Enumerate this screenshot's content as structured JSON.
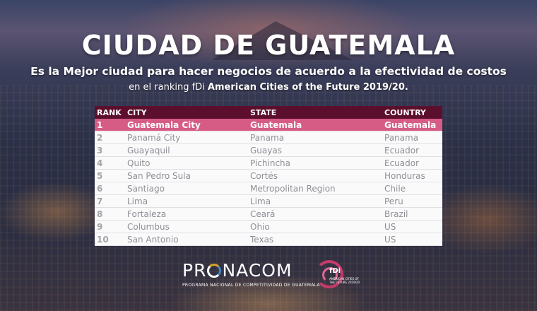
{
  "title": "CIUDAD DE GUATEMALA",
  "subtitle": "Es la Mejor ciudad para hacer negocios de acuerdo a la efectividad de costos",
  "subtitle2_prefix": "en el ranking fDi ",
  "subtitle2_bold": "American Cities of the Future 2019/20.",
  "table": {
    "headers": {
      "rank": "RANK",
      "city": "CITY",
      "state": "STATE",
      "country": "COUNTRY"
    },
    "rows": [
      {
        "rank": "1",
        "city": "Guatemala City",
        "state": "Guatemala",
        "country": "Guatemala"
      },
      {
        "rank": "2",
        "city": "Panamá City",
        "state": "Panama",
        "country": "Panama"
      },
      {
        "rank": "3",
        "city": "Guayaquil",
        "state": "Guayas",
        "country": "Ecuador"
      },
      {
        "rank": "4",
        "city": "Quito",
        "state": "Pichincha",
        "country": "Ecuador"
      },
      {
        "rank": "5",
        "city": "San Pedro Sula",
        "state": "Cortés",
        "country": "Honduras"
      },
      {
        "rank": "6",
        "city": "Santiago",
        "state": "Metropolitan Region",
        "country": "Chile"
      },
      {
        "rank": "7",
        "city": "Lima",
        "state": "Lima",
        "country": "Peru"
      },
      {
        "rank": "8",
        "city": "Fortaleza",
        "state": "Ceará",
        "country": "Brazil"
      },
      {
        "rank": "9",
        "city": "Columbus",
        "state": "Ohio",
        "country": "US"
      },
      {
        "rank": "10",
        "city": "San Antonio",
        "state": "Texas",
        "country": "US"
      }
    ]
  },
  "logos": {
    "pronacom_pre": "PR",
    "pronacom_post": "NACOM",
    "pronacom_sub": "PROGRAMA NACIONAL DE COMPETITIVIDAD DE GUATEMALA",
    "fdi_name": "fDi",
    "fdi_sub": "AMERICAN CITIES OF THE FUTURE 2019/20"
  },
  "colors": {
    "header_bg": "#5c0f2c",
    "highlight_bg": "#d65c86",
    "row_bg": "#fbfafb"
  }
}
